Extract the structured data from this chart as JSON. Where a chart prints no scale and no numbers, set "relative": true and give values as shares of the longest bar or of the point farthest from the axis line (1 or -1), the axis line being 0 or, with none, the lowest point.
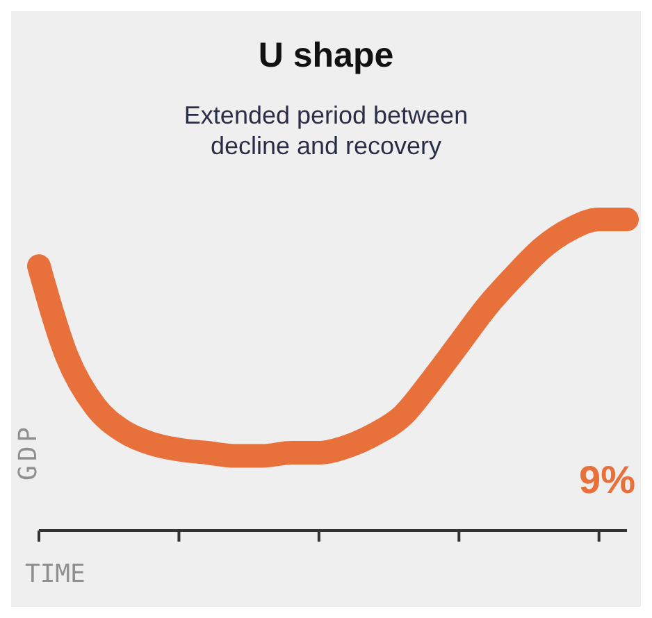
{
  "chart_data": {
    "type": "line",
    "title": "U shape",
    "subtitle": "Extended period between decline and recovery",
    "xlabel": "TIME",
    "ylabel": "GDP",
    "relative": true,
    "annotations": [
      "9%"
    ],
    "categories": [
      null,
      null,
      null,
      null,
      null,
      null,
      null,
      null,
      null,
      null,
      null,
      null,
      null,
      null,
      null,
      null,
      null,
      null,
      null,
      null,
      null,
      null
    ],
    "series": [
      {
        "color": "#e8703a",
        "values": [
          0.85,
          0.56,
          0.4,
          0.32,
          0.28,
          0.26,
          0.25,
          0.24,
          0.24,
          0.25,
          0.25,
          0.27,
          0.31,
          0.37,
          0.48,
          0.6,
          0.72,
          0.82,
          0.91,
          0.97,
          1.0,
          1.0
        ]
      }
    ],
    "marker": "none",
    "line_style": "solid",
    "grid": false
  }
}
